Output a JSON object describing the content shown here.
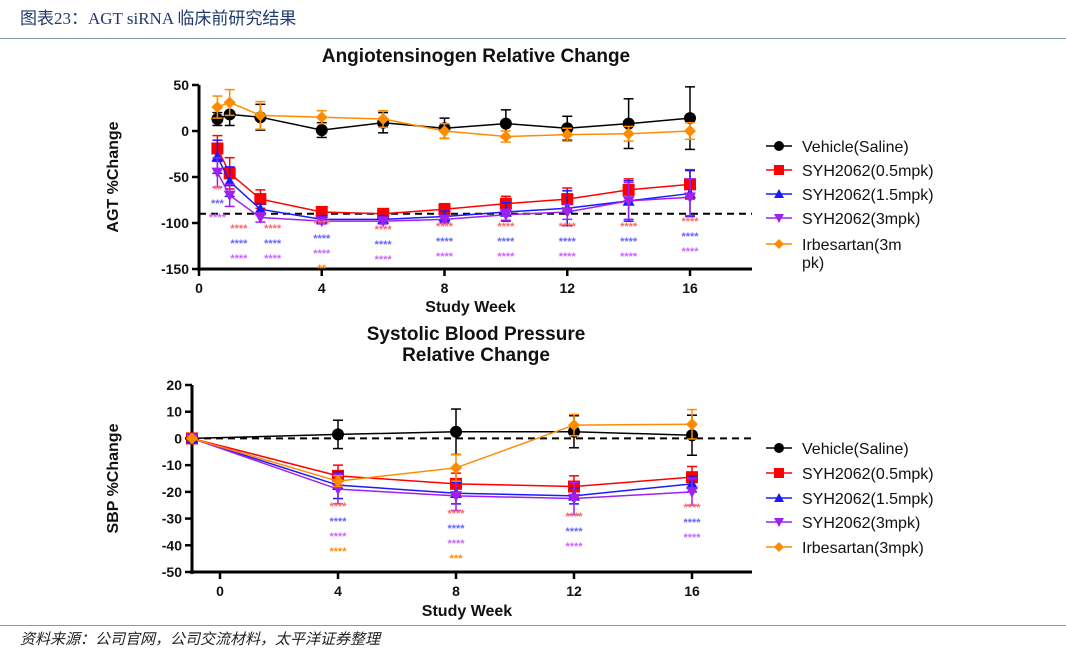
{
  "figure_title": "图表23：AGT siRNA 临床前研究结果",
  "source": "资料来源：公司官网，公司交流材料，太平洋证券整理",
  "chart_data": [
    {
      "type": "line",
      "title": "Angiotensinogen Relative Change",
      "xlabel": "Study Week",
      "ylabel": "AGT %Change",
      "xlim": [
        0,
        18
      ],
      "ylim": [
        -150,
        50
      ],
      "xticks": [
        0,
        4,
        8,
        12,
        16
      ],
      "yticks": [
        50,
        0,
        -50,
        -100,
        -150
      ],
      "reference_line": {
        "y": -90,
        "style": "dashed"
      },
      "legend_position": "right",
      "series": [
        {
          "name": "Vehicle(Saline)",
          "color": "#000000",
          "marker": "circle",
          "x": [
            0.6,
            1,
            2,
            4,
            6,
            8,
            10,
            12,
            14,
            16
          ],
          "y": [
            13,
            18,
            15,
            1,
            9,
            3,
            8,
            3,
            8,
            14
          ],
          "err": [
            7,
            12,
            14,
            8,
            11,
            11,
            15,
            13,
            27,
            34
          ]
        },
        {
          "name": "SYH2062(0.5mpk)",
          "color": "#ff0000",
          "marker": "square",
          "x": [
            0.6,
            1,
            2,
            4,
            6,
            8,
            10,
            12,
            14,
            16
          ],
          "y": [
            -19,
            -46,
            -74,
            -88,
            -90,
            -85,
            -79,
            -74,
            -64,
            -58
          ],
          "err": [
            14,
            17,
            10,
            5,
            4,
            6,
            8,
            12,
            12,
            16
          ]
        },
        {
          "name": "SYH2062(1.5mpk)",
          "color": "#1a1aff",
          "marker": "triangle-up",
          "x": [
            0.6,
            1,
            2,
            4,
            6,
            8,
            10,
            12,
            14,
            16
          ],
          "y": [
            -28,
            -55,
            -85,
            -96,
            -96,
            -93,
            -88,
            -84,
            -76,
            -68
          ],
          "err": [
            18,
            16,
            6,
            4,
            4,
            6,
            10,
            19,
            22,
            25
          ]
        },
        {
          "name": "SYH2062(3mpk)",
          "color": "#a020f0",
          "marker": "triangle-down",
          "x": [
            0.6,
            1,
            2,
            4,
            6,
            8,
            10,
            12,
            14,
            16
          ],
          "y": [
            -45,
            -70,
            -94,
            -98,
            -98,
            -96,
            -91,
            -88,
            -76,
            -72
          ],
          "err": [
            16,
            12,
            5,
            3,
            3,
            4,
            6,
            8,
            20,
            20
          ]
        },
        {
          "name": "Irbesartan(3mpk)",
          "legend_label_lines": [
            "Irbesartan(3m",
            "pk)"
          ],
          "color": "#ff8c00",
          "marker": "diamond",
          "x": [
            0.6,
            1,
            2,
            4,
            6,
            8,
            10,
            12,
            14,
            16
          ],
          "y": [
            26,
            31,
            17,
            15,
            13,
            0,
            -6,
            -4,
            -3,
            0
          ],
          "err": [
            12,
            14,
            15,
            7,
            9,
            8,
            6,
            7,
            8,
            9
          ]
        }
      ],
      "annotations": [
        {
          "x": 0.6,
          "rows": [
            {
              "text": "**",
              "color": "#ff6666"
            },
            {
              "text": "***",
              "color": "#6666ff"
            },
            {
              "text": "****",
              "color": "#cc66ff"
            }
          ]
        },
        {
          "x": 1.3,
          "rows": [
            {
              "text": "****",
              "color": "#ff6666"
            },
            {
              "text": "****",
              "color": "#6666ff"
            },
            {
              "text": "****",
              "color": "#cc66ff"
            }
          ]
        },
        {
          "x": 2.4,
          "rows": [
            {
              "text": "****",
              "color": "#ff6666"
            },
            {
              "text": "****",
              "color": "#6666ff"
            },
            {
              "text": "****",
              "color": "#cc66ff"
            }
          ]
        },
        {
          "x": 4,
          "rows": [
            {
              "text": "****",
              "color": "#ff6666"
            },
            {
              "text": "****",
              "color": "#6666ff"
            },
            {
              "text": "****",
              "color": "#cc66ff"
            },
            {
              "text": "**",
              "color": "#ff8c00"
            }
          ]
        },
        {
          "x": 6,
          "rows": [
            {
              "text": "****",
              "color": "#ff6666"
            },
            {
              "text": "****",
              "color": "#6666ff"
            },
            {
              "text": "****",
              "color": "#cc66ff"
            }
          ]
        },
        {
          "x": 8,
          "rows": [
            {
              "text": "****",
              "color": "#ff6666"
            },
            {
              "text": "****",
              "color": "#6666ff"
            },
            {
              "text": "****",
              "color": "#cc66ff"
            }
          ]
        },
        {
          "x": 10,
          "rows": [
            {
              "text": "****",
              "color": "#ff6666"
            },
            {
              "text": "****",
              "color": "#6666ff"
            },
            {
              "text": "****",
              "color": "#cc66ff"
            }
          ]
        },
        {
          "x": 12,
          "rows": [
            {
              "text": "****",
              "color": "#ff6666"
            },
            {
              "text": "****",
              "color": "#6666ff"
            },
            {
              "text": "****",
              "color": "#cc66ff"
            }
          ]
        },
        {
          "x": 14,
          "rows": [
            {
              "text": "****",
              "color": "#ff6666"
            },
            {
              "text": "****",
              "color": "#6666ff"
            },
            {
              "text": "****",
              "color": "#cc66ff"
            }
          ]
        },
        {
          "x": 16,
          "rows": [
            {
              "text": "****",
              "color": "#ff6666"
            },
            {
              "text": "****",
              "color": "#6666ff"
            },
            {
              "text": "****",
              "color": "#cc66ff"
            }
          ]
        }
      ]
    },
    {
      "type": "line",
      "title": "Systolic Blood Pressure Relative Change",
      "title_lines": [
        "Systolic Blood Pressure",
        "Relative Change"
      ],
      "xlabel": "Study Week",
      "ylabel": "SBP %Change",
      "xlim": [
        -1,
        18
      ],
      "ylim": [
        -50,
        20
      ],
      "xticks": [
        0,
        4,
        8,
        12,
        16
      ],
      "yticks": [
        20,
        10,
        0,
        -10,
        -20,
        -30,
        -40,
        -50
      ],
      "reference_line": {
        "y": 0,
        "style": "dashed"
      },
      "legend_position": "right",
      "series": [
        {
          "name": "Vehicle(Saline)",
          "color": "#000000",
          "marker": "circle",
          "x": [
            -1,
            4,
            8,
            12,
            16
          ],
          "y": [
            0,
            1.5,
            2.5,
            2.5,
            1.2
          ],
          "err": [
            0,
            5.3,
            8.5,
            6,
            7.5
          ]
        },
        {
          "name": "SYH2062(0.5mpk)",
          "color": "#ff0000",
          "marker": "square",
          "x": [
            -1,
            4,
            8,
            12,
            16
          ],
          "y": [
            0,
            -14,
            -17,
            -18,
            -14.5
          ],
          "err": [
            0,
            4,
            4,
            4,
            4
          ]
        },
        {
          "name": "SYH2062(1.5mpk)",
          "color": "#1a1aff",
          "marker": "triangle-up",
          "x": [
            -1,
            4,
            8,
            12,
            16
          ],
          "y": [
            0,
            -17.5,
            -20.5,
            -21.5,
            -17
          ],
          "err": [
            0,
            5,
            4,
            3,
            3
          ]
        },
        {
          "name": "SYH2062(3mpk)",
          "color": "#a020f0",
          "marker": "triangle-down",
          "x": [
            -1,
            4,
            8,
            12,
            16
          ],
          "y": [
            0,
            -19,
            -21.5,
            -22.5,
            -20
          ],
          "err": [
            0,
            5.5,
            5.5,
            6,
            5
          ]
        },
        {
          "name": "Irbesartan(3mpk)",
          "color": "#ff8c00",
          "marker": "diamond",
          "x": [
            -1,
            4,
            8,
            12,
            16
          ],
          "y": [
            0,
            -16,
            -11,
            5,
            5.3
          ],
          "err": [
            0,
            2,
            5,
            4,
            5.5
          ]
        }
      ],
      "annotations": [
        {
          "x": 4,
          "rows": [
            {
              "text": "****",
              "color": "#ff6666"
            },
            {
              "text": "****",
              "color": "#6666ff"
            },
            {
              "text": "****",
              "color": "#cc66ff"
            },
            {
              "text": "****",
              "color": "#ff8c00"
            }
          ]
        },
        {
          "x": 8,
          "rows": [
            {
              "text": "****",
              "color": "#ff6666"
            },
            {
              "text": "****",
              "color": "#6666ff"
            },
            {
              "text": "****",
              "color": "#cc66ff"
            },
            {
              "text": "***",
              "color": "#ff8c00"
            }
          ]
        },
        {
          "x": 12,
          "rows": [
            {
              "text": "****",
              "color": "#ff6666"
            },
            {
              "text": "****",
              "color": "#6666ff"
            },
            {
              "text": "****",
              "color": "#cc66ff"
            }
          ]
        },
        {
          "x": 16,
          "rows": [
            {
              "text": "****",
              "color": "#ff6666"
            },
            {
              "text": "****",
              "color": "#6666ff"
            },
            {
              "text": "****",
              "color": "#cc66ff"
            }
          ]
        }
      ]
    }
  ]
}
